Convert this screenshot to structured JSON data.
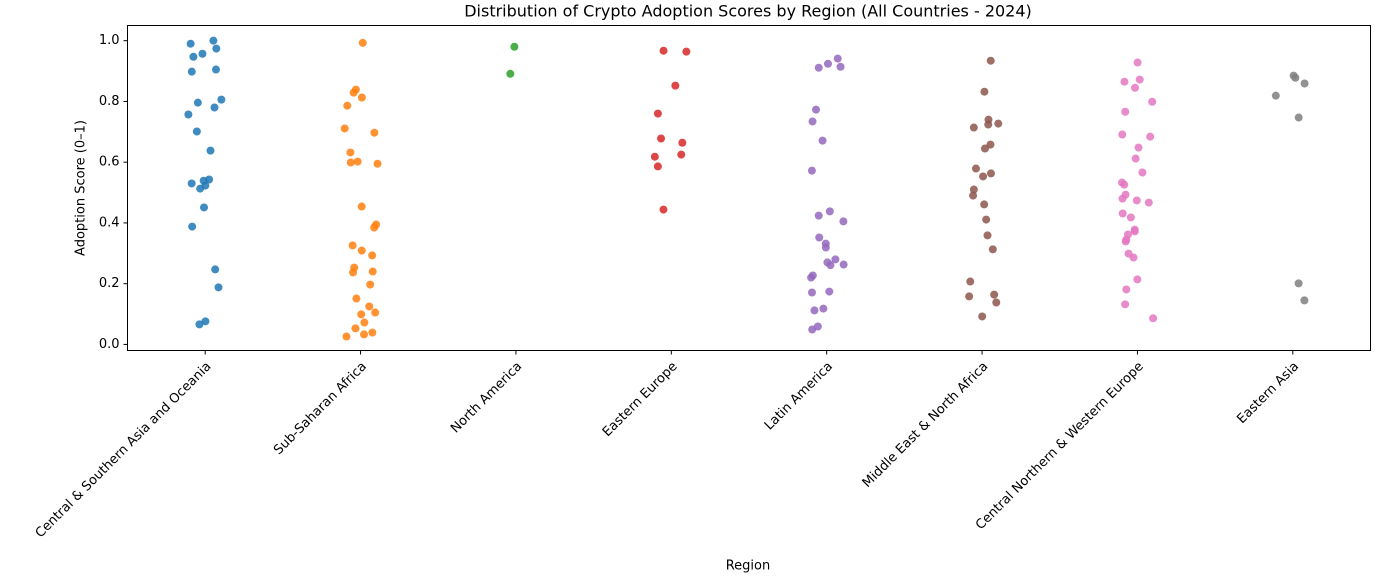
{
  "chart_data": {
    "type": "strip",
    "title": "Distribution of Crypto Adoption Scores by Region (All Countries - 2024)",
    "x_label": "Region",
    "y_label": "Adoption Score (0–1)",
    "categories": [
      "Central & Southern Asia and Oceania",
      "Sub-Saharan Africa",
      "North America",
      "Eastern Europe",
      "Latin America",
      "Middle East & North Africa",
      "Central Northern & Western Europe",
      "Eastern Asia"
    ],
    "colors": [
      "#1f77b4",
      "#ff7f0e",
      "#2ca02c",
      "#d62728",
      "#9467bd",
      "#8c564b",
      "#e377c2",
      "#7f7f7f"
    ],
    "values": [
      [
        1.0,
        0.99,
        0.957,
        0.974,
        0.947,
        0.905,
        0.898,
        0.806,
        0.796,
        0.78,
        0.757,
        0.701,
        0.638,
        0.523,
        0.53,
        0.513,
        0.543,
        0.539,
        0.451,
        0.388,
        0.247,
        0.188,
        0.066,
        0.076
      ],
      [
        0.993,
        0.839,
        0.829,
        0.813,
        0.786,
        0.711,
        0.697,
        0.632,
        0.602,
        0.595,
        0.599,
        0.454,
        0.395,
        0.385,
        0.326,
        0.309,
        0.293,
        0.253,
        0.24,
        0.237,
        0.197,
        0.151,
        0.125,
        0.105,
        0.099,
        0.072,
        0.053,
        0.039,
        0.033,
        0.026
      ],
      [
        0.98,
        0.891
      ],
      [
        0.967,
        0.964,
        0.852,
        0.76,
        0.678,
        0.664,
        0.625,
        0.618,
        0.586,
        0.444
      ],
      [
        0.941,
        0.924,
        0.914,
        0.911,
        0.773,
        0.734,
        0.671,
        0.572,
        0.438,
        0.424,
        0.405,
        0.352,
        0.332,
        0.319,
        0.28,
        0.27,
        0.263,
        0.261,
        0.227,
        0.22,
        0.174,
        0.171,
        0.118,
        0.112,
        0.059,
        0.049
      ],
      [
        0.934,
        0.832,
        0.74,
        0.727,
        0.724,
        0.714,
        0.658,
        0.645,
        0.579,
        0.563,
        0.553,
        0.51,
        0.49,
        0.461,
        0.411,
        0.359,
        0.313,
        0.207,
        0.164,
        0.158,
        0.138,
        0.092
      ],
      [
        0.928,
        0.872,
        0.865,
        0.845,
        0.799,
        0.766,
        0.691,
        0.684,
        0.648,
        0.612,
        0.566,
        0.533,
        0.526,
        0.493,
        0.48,
        0.474,
        0.467,
        0.431,
        0.418,
        0.378,
        0.372,
        0.362,
        0.345,
        0.339,
        0.299,
        0.286,
        0.214,
        0.181,
        0.132,
        0.086
      ],
      [
        0.885,
        0.878,
        0.859,
        0.819,
        0.747,
        0.201,
        0.145
      ]
    ],
    "ylim": [
      -0.02,
      1.05
    ],
    "yticks": [
      {
        "value": 0,
        "label": "0.0"
      },
      {
        "value": 0.2,
        "label": "0.2"
      },
      {
        "value": 0.4,
        "label": "0.4"
      },
      {
        "value": 0.6,
        "label": "0.6"
      },
      {
        "value": 0.8,
        "label": "0.8"
      },
      {
        "value": 1,
        "label": "1.0"
      }
    ],
    "grid": false
  }
}
